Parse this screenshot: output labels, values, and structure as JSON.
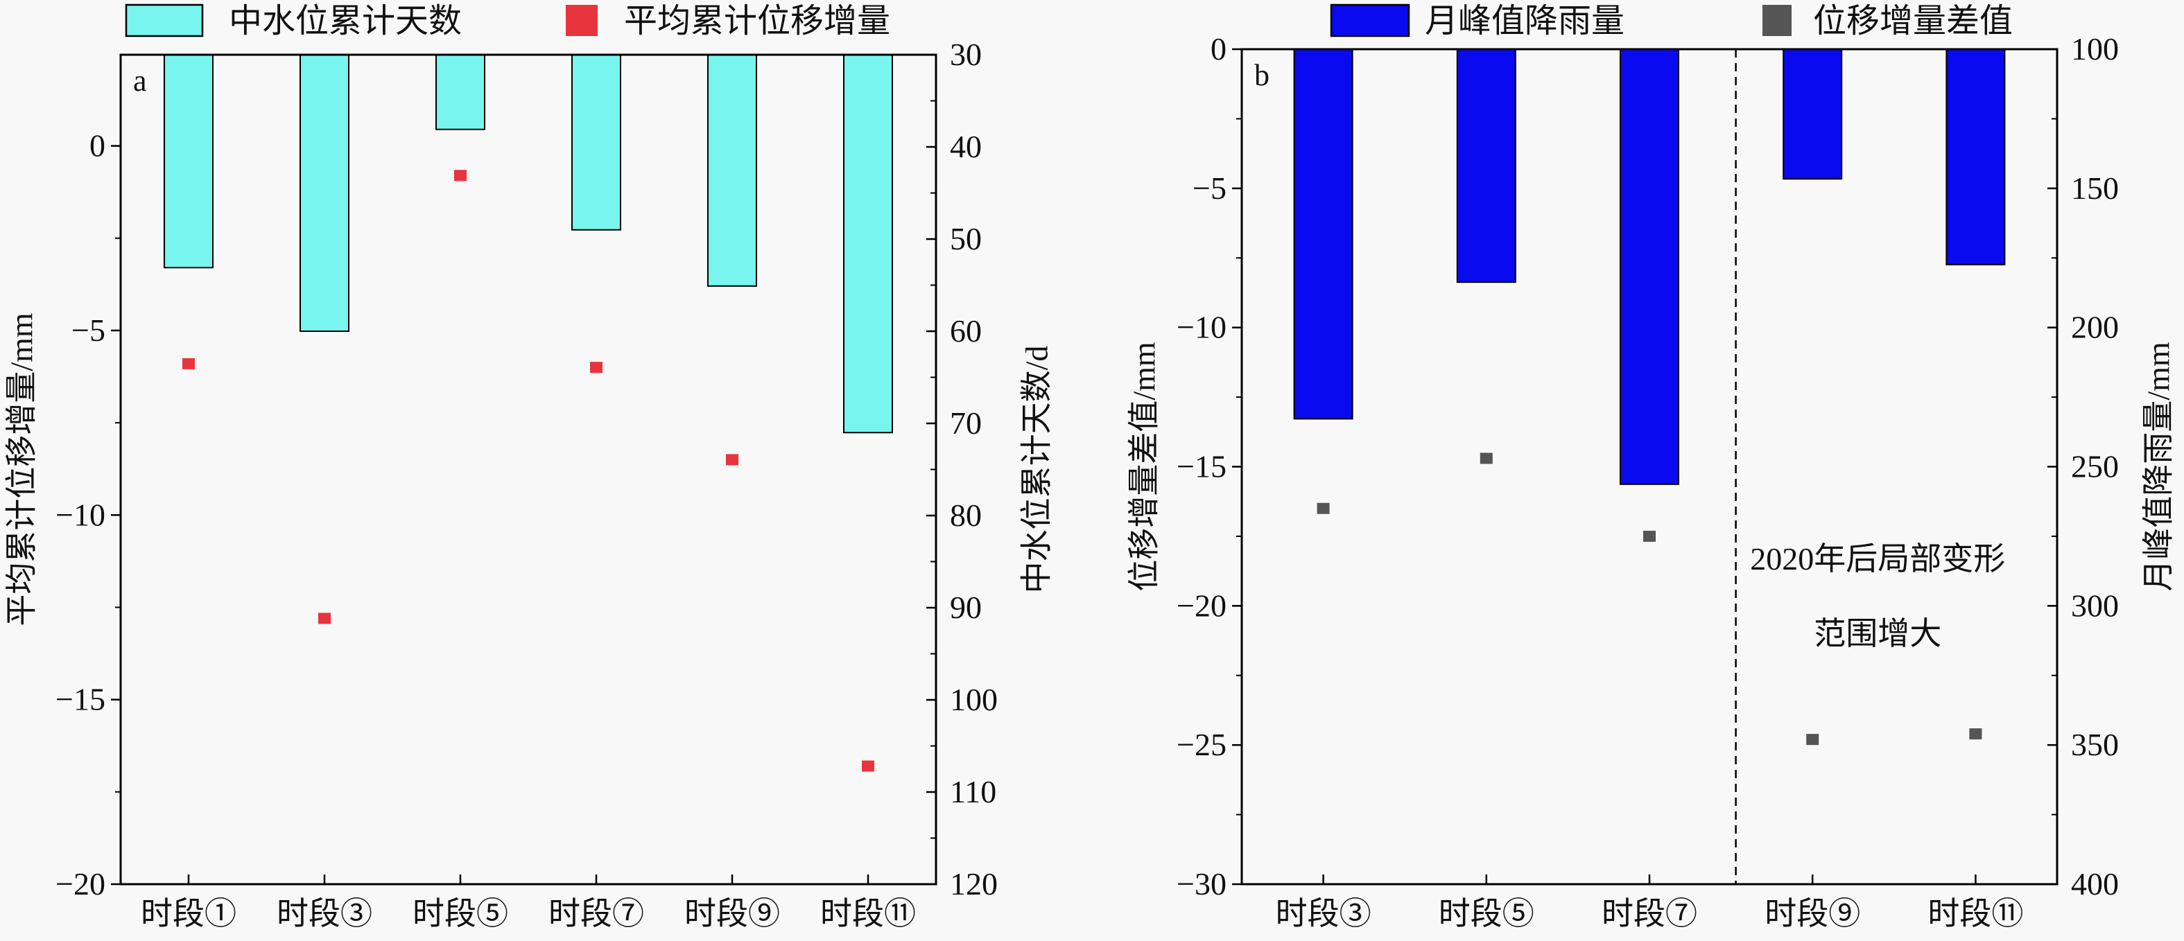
{
  "chart_data": [
    {
      "type": "bar+scatter",
      "panel_label": "a",
      "categories": [
        "时段①",
        "时段③",
        "时段⑤",
        "时段⑦",
        "时段⑨",
        "时段⑪"
      ],
      "legend": {
        "bar": "中水位累计天数",
        "scatter": "平均累计位移增量",
        "placement": "top"
      },
      "left_axis": {
        "label": "平均累计位移增量/mm",
        "range": [
          -20,
          2.47
        ],
        "ticks": [
          0,
          -5,
          -10,
          -15,
          -20
        ],
        "tick_labels": [
          "0",
          "−5",
          "−10",
          "−15",
          "−20"
        ],
        "minor_step": 2.5
      },
      "right_axis": {
        "label": "中水位累计天数/d",
        "range": [
          30,
          120
        ],
        "inverted": true,
        "ticks": [
          30,
          40,
          50,
          60,
          70,
          80,
          90,
          100,
          110,
          120
        ],
        "tick_labels": [
          "30",
          "40",
          "50",
          "60",
          "70",
          "80",
          "90",
          "100",
          "110",
          "120"
        ],
        "minor_step": 5
      },
      "bar_series": {
        "name": "中水位累计天数",
        "axis": "right",
        "values": [
          53.1,
          60.0,
          38.1,
          49.0,
          55.1,
          71.0
        ],
        "color": "#77f5ee"
      },
      "scatter_series": {
        "name": "平均累计位移增量",
        "axis": "left",
        "values": [
          -5.9,
          -12.8,
          -0.8,
          -6.0,
          -8.5,
          -16.8
        ],
        "color": "#e8343c"
      },
      "grid": false
    },
    {
      "type": "bar+scatter",
      "panel_label": "b",
      "categories": [
        "时段③",
        "时段⑤",
        "时段⑦",
        "时段⑨",
        "时段⑪"
      ],
      "legend": {
        "bar": "月峰值降雨量",
        "scatter": "位移增量差值",
        "placement": "top"
      },
      "left_axis": {
        "label": "位移增量差值/mm",
        "range": [
          -30,
          0
        ],
        "ticks": [
          0,
          -5,
          -10,
          -15,
          -20,
          -25,
          -30
        ],
        "tick_labels": [
          "0",
          "−5",
          "−10",
          "−15",
          "−20",
          "−25",
          "−30"
        ],
        "minor_step": 2.5
      },
      "right_axis": {
        "label": "月峰值降雨量/mm",
        "range": [
          100,
          400
        ],
        "inverted": true,
        "ticks": [
          100,
          150,
          200,
          250,
          300,
          350,
          400
        ],
        "tick_labels": [
          "100",
          "150",
          "200",
          "250",
          "300",
          "350",
          "400"
        ],
        "minor_step": 25
      },
      "bar_series": {
        "name": "月峰值降雨量",
        "axis": "right",
        "values": [
          232.8,
          183.7,
          256.3,
          146.6,
          177.4
        ],
        "color": "#0a0af0"
      },
      "scatter_series": {
        "name": "位移增量差值",
        "axis": "left",
        "values": [
          -16.5,
          -14.7,
          -17.5,
          -24.8,
          -24.6
        ],
        "color": "#555555"
      },
      "divider_after_category": 2,
      "annotation": [
        "2020年后局部变形",
        "范围增大"
      ],
      "grid": false
    }
  ]
}
